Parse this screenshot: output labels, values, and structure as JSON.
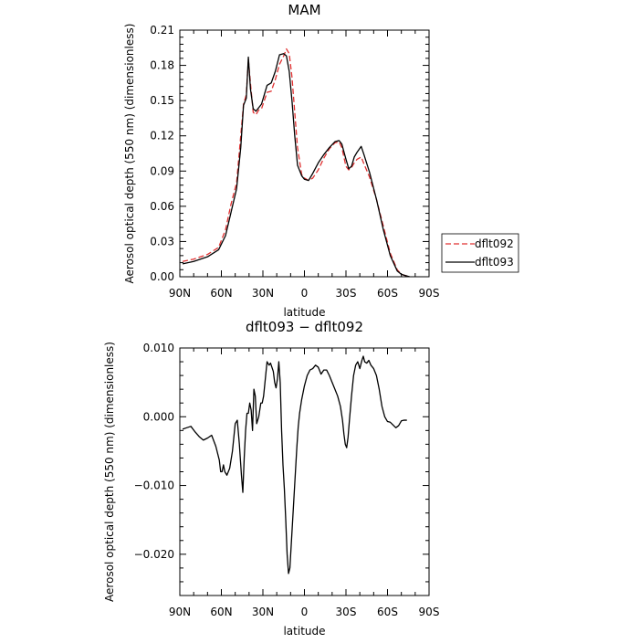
{
  "chart_data": [
    {
      "type": "line",
      "title": "MAM",
      "xlabel": "latitude",
      "ylabel": "Aerosol optical depth (550 nm) (dimensionless)",
      "xlim": [
        90,
        -90
      ],
      "ylim": [
        0.0,
        0.21
      ],
      "x_ticks": [
        90,
        60,
        30,
        0,
        -30,
        -60,
        -90
      ],
      "x_tick_labels": [
        "90N",
        "60N",
        "30N",
        "0",
        "30S",
        "60S",
        "90S"
      ],
      "y_ticks": [
        0.0,
        0.03,
        0.06,
        0.09,
        0.12,
        0.15,
        0.18,
        0.21
      ],
      "y_tick_labels": [
        "0.00",
        "0.03",
        "0.06",
        "0.09",
        "0.12",
        "0.15",
        "0.18",
        "0.21"
      ],
      "grid": false,
      "legend": {
        "placement": "right",
        "entries": [
          "dflt092",
          "dflt093"
        ]
      },
      "series": [
        {
          "name": "dflt092",
          "color": "#e03030",
          "dash": "dashed",
          "x": [
            88,
            80,
            70,
            62,
            57,
            53,
            49,
            46,
            44,
            42,
            40.5,
            39,
            37,
            35,
            33,
            31,
            29,
            27,
            24,
            21,
            18,
            15,
            13,
            11,
            9,
            7,
            5,
            2,
            0,
            -3,
            -6,
            -10,
            -14,
            -18,
            -22,
            -25,
            -27,
            -30,
            -32,
            -34,
            -36,
            -38,
            -41,
            -43,
            -47,
            -52,
            -57,
            -62,
            -67,
            -70,
            -73,
            -76
          ],
          "y": [
            0.013,
            0.015,
            0.019,
            0.025,
            0.04,
            0.062,
            0.08,
            0.12,
            0.147,
            0.155,
            0.185,
            0.165,
            0.14,
            0.138,
            0.142,
            0.143,
            0.15,
            0.157,
            0.158,
            0.168,
            0.181,
            0.188,
            0.194,
            0.19,
            0.17,
            0.14,
            0.11,
            0.087,
            0.084,
            0.082,
            0.084,
            0.091,
            0.101,
            0.109,
            0.114,
            0.115,
            0.11,
            0.094,
            0.091,
            0.093,
            0.097,
            0.1,
            0.102,
            0.096,
            0.085,
            0.066,
            0.043,
            0.02,
            0.006,
            0.002,
            0.001,
            0.0
          ]
        },
        {
          "name": "dflt093",
          "color": "#000000",
          "dash": "solid",
          "x": [
            88,
            80,
            70,
            62,
            57,
            53,
            49,
            46,
            44,
            42,
            40.5,
            39,
            37,
            35,
            33,
            31,
            29,
            27,
            24,
            21,
            18,
            15,
            13,
            11,
            9,
            7,
            5,
            2,
            0,
            -3,
            -6,
            -10,
            -14,
            -18,
            -22,
            -25,
            -27,
            -30,
            -32,
            -34,
            -36,
            -38,
            -41,
            -43,
            -47,
            -52,
            -57,
            -62,
            -67,
            -70,
            -73,
            -76
          ],
          "y": [
            0.011,
            0.013,
            0.017,
            0.023,
            0.035,
            0.055,
            0.075,
            0.11,
            0.146,
            0.152,
            0.187,
            0.16,
            0.143,
            0.141,
            0.144,
            0.147,
            0.155,
            0.163,
            0.165,
            0.175,
            0.189,
            0.19,
            0.188,
            0.175,
            0.15,
            0.12,
            0.095,
            0.086,
            0.083,
            0.082,
            0.088,
            0.097,
            0.104,
            0.11,
            0.115,
            0.116,
            0.113,
            0.1,
            0.092,
            0.094,
            0.102,
            0.106,
            0.111,
            0.104,
            0.089,
            0.066,
            0.04,
            0.018,
            0.005,
            0.002,
            0.001,
            0.0
          ]
        }
      ]
    },
    {
      "type": "line",
      "title": "dflt093 − dflt092",
      "xlabel": "latitude",
      "ylabel": "Aerosol optical depth (550 nm) (dimensionless)",
      "xlim": [
        90,
        -90
      ],
      "ylim": [
        -0.026,
        0.01
      ],
      "x_ticks": [
        90,
        60,
        30,
        0,
        -30,
        -60,
        -90
      ],
      "x_tick_labels": [
        "90N",
        "60N",
        "30N",
        "0",
        "30S",
        "60S",
        "90S"
      ],
      "y_ticks": [
        0.01,
        0.0,
        -0.01,
        -0.02
      ],
      "y_tick_labels": [
        "0.010",
        "0.000",
        "−0.010",
        "−0.020"
      ],
      "grid": false,
      "series": [
        {
          "name": "",
          "color": "#000000",
          "dash": "solid",
          "x": [
            88,
            85,
            82,
            79,
            76,
            73,
            70,
            67,
            64,
            61.5,
            60.5,
            59.5,
            58.5,
            57.5,
            56,
            54,
            52,
            50,
            48.5,
            47,
            45.5,
            44.5,
            43.5,
            42.5,
            41.5,
            40.5,
            39.5,
            38.5,
            37.5,
            36.5,
            35.5,
            34.5,
            33,
            31.5,
            30.5,
            29.5,
            28,
            27,
            25.5,
            24.5,
            23.5,
            22.5,
            21.5,
            20.5,
            19.5,
            18.5,
            17.5,
            16.5,
            15.5,
            14.5,
            13.5,
            12.5,
            11.5,
            10.5,
            9.5,
            8.5,
            7.5,
            6.5,
            5.5,
            4.5,
            3.5,
            2,
            0,
            -2,
            -4,
            -6,
            -8,
            -10,
            -12,
            -14,
            -16,
            -18,
            -20,
            -22,
            -24,
            -26,
            -27.5,
            -28.5,
            -29.5,
            -30.5,
            -31.5,
            -32.5,
            -34,
            -35.5,
            -37,
            -38.5,
            -40,
            -41.5,
            -42.5,
            -43.5,
            -45,
            -46.5,
            -48,
            -50,
            -52,
            -54,
            -56,
            -58,
            -60,
            -62,
            -64,
            -66,
            -68,
            -70,
            -72,
            -74
          ],
          "y": [
            -0.0018,
            -0.0016,
            -0.0014,
            -0.0022,
            -0.0029,
            -0.0034,
            -0.0031,
            -0.0027,
            -0.0043,
            -0.0063,
            -0.008,
            -0.008,
            -0.007,
            -0.008,
            -0.0085,
            -0.0075,
            -0.005,
            -0.001,
            -0.0005,
            -0.004,
            -0.0085,
            -0.011,
            -0.006,
            -0.002,
            0.0005,
            0.0005,
            0.002,
            0.001,
            -0.002,
            0.004,
            0.003,
            -0.001,
            0.0,
            0.002,
            0.002,
            0.003,
            0.006,
            0.008,
            0.0075,
            0.0078,
            0.0072,
            0.0066,
            0.005,
            0.0042,
            0.0055,
            0.008,
            0.005,
            -0.002,
            -0.007,
            -0.0105,
            -0.015,
            -0.02,
            -0.0228,
            -0.022,
            -0.0185,
            -0.015,
            -0.0115,
            -0.008,
            -0.0045,
            -0.0015,
            0.0005,
            0.0025,
            0.0045,
            0.006,
            0.0068,
            0.007,
            0.0075,
            0.0072,
            0.0062,
            0.0068,
            0.0068,
            0.006,
            0.005,
            0.004,
            0.003,
            0.0015,
            -0.0005,
            -0.0025,
            -0.004,
            -0.0045,
            -0.003,
            -0.0005,
            0.003,
            0.006,
            0.0075,
            0.008,
            0.007,
            0.0082,
            0.0088,
            0.008,
            0.0078,
            0.0082,
            0.0075,
            0.007,
            0.006,
            0.004,
            0.0015,
            0.0,
            -0.0007,
            -0.0008,
            -0.0012,
            -0.0016,
            -0.0013,
            -0.0006,
            -0.0005,
            -0.0005
          ]
        }
      ]
    }
  ]
}
